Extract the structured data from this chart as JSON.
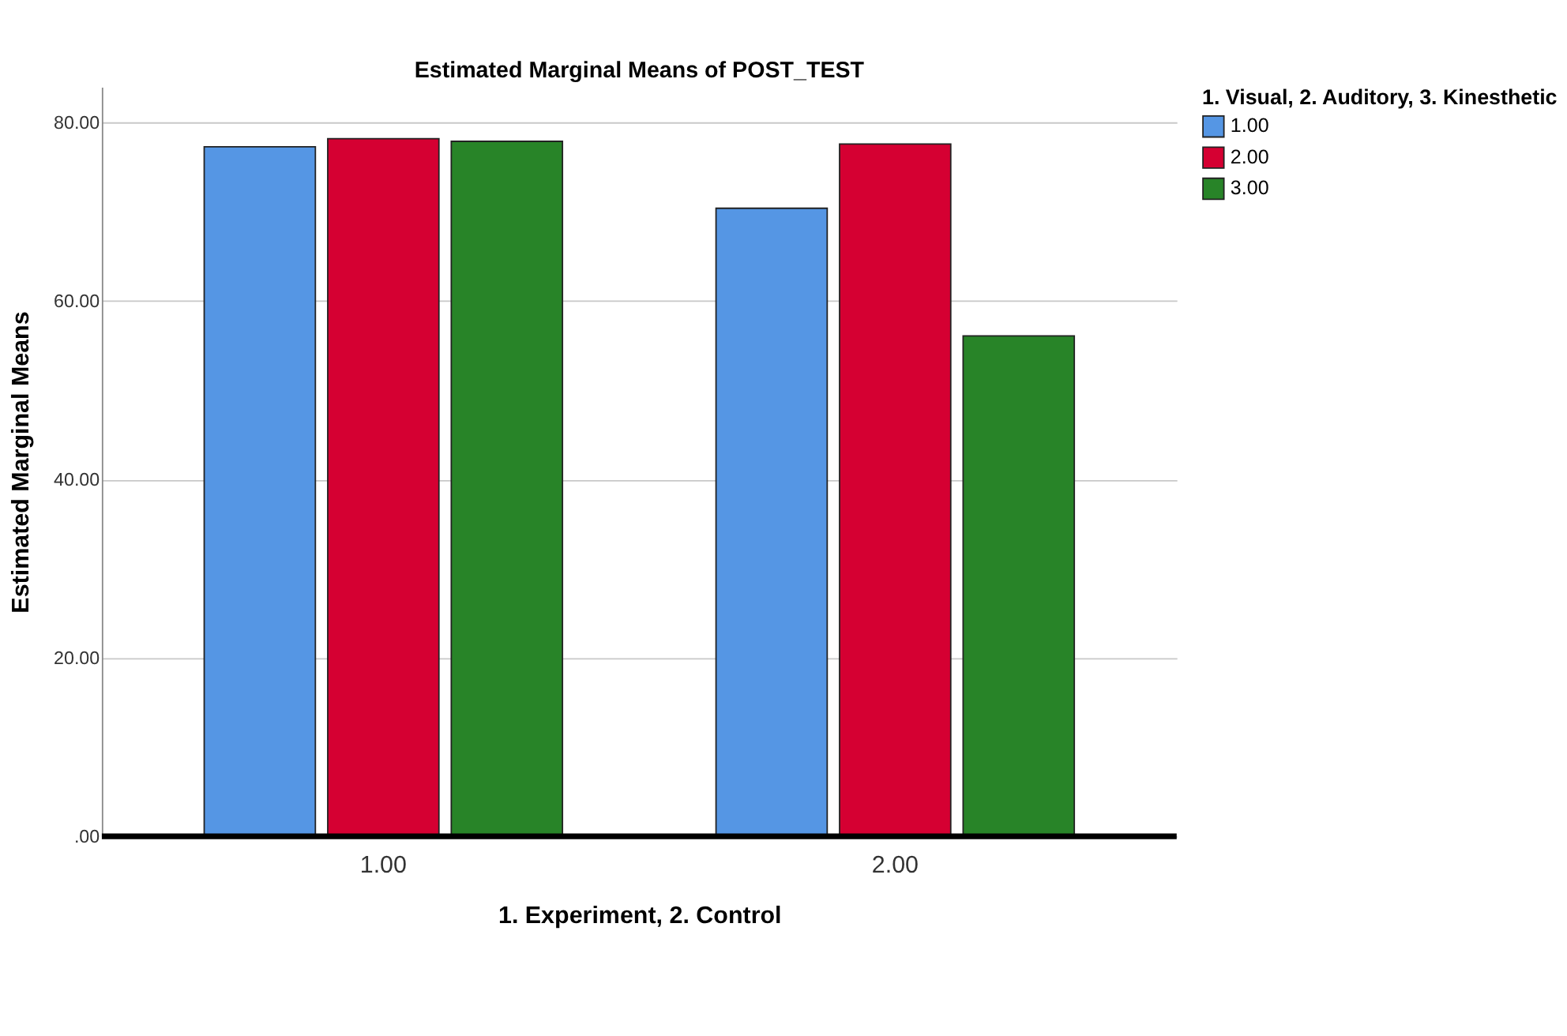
{
  "chart_data": {
    "type": "bar",
    "title": "Estimated Marginal Means of POST_TEST",
    "xlabel": "1. Experiment, 2. Control",
    "ylabel": "Estimated Marginal Means",
    "legend_title": "1. Visual, 2. Auditory, 3. Kinesthetic",
    "categories": [
      "1.00",
      "2.00"
    ],
    "series": [
      {
        "name": "1.00",
        "color": "#5596e4",
        "values": [
          77.3,
          70.4
        ]
      },
      {
        "name": "2.00",
        "color": "#d50032",
        "values": [
          78.2,
          77.6
        ]
      },
      {
        "name": "3.00",
        "color": "#288428",
        "values": [
          77.9,
          56.1
        ]
      }
    ],
    "ylim": [
      0,
      84
    ],
    "yticks": [
      {
        "value": 0,
        "label": ".00"
      },
      {
        "value": 20,
        "label": "20.00"
      },
      {
        "value": 40,
        "label": "40.00"
      },
      {
        "value": 60,
        "label": "60.00"
      },
      {
        "value": 80,
        "label": "80.00"
      }
    ],
    "grid": "y",
    "legend": "top right"
  }
}
